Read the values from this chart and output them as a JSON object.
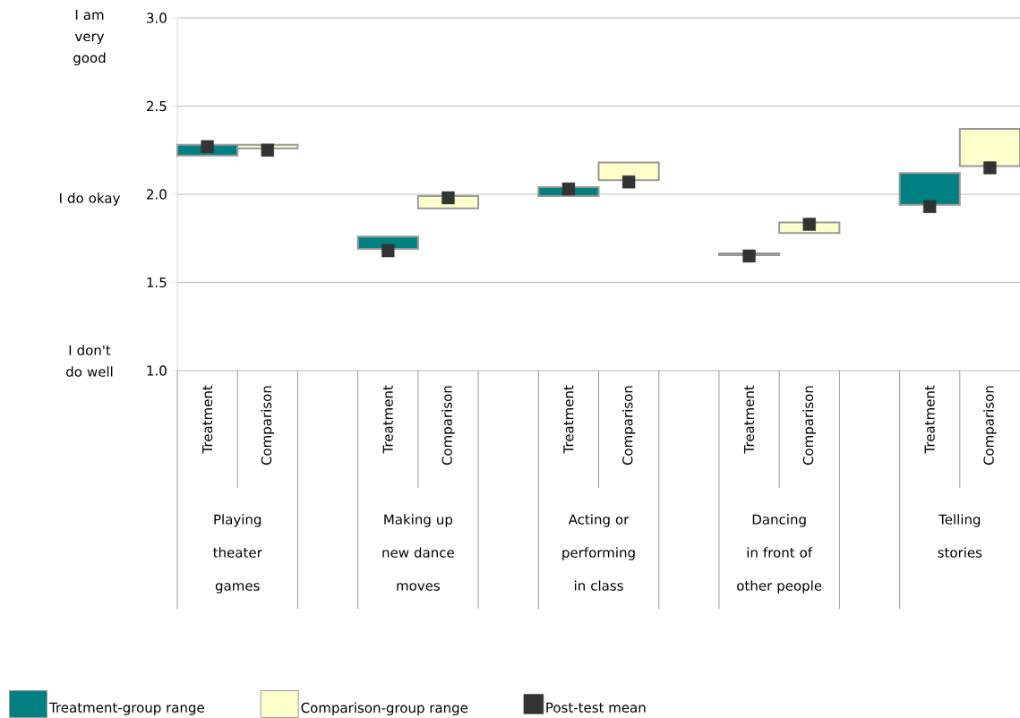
{
  "chart_data": {
    "type": "bar",
    "categories": [
      "Treatment",
      "Comparison",
      null,
      "Treatment",
      "Comparison",
      null,
      "Treatment",
      "Comparison",
      null,
      "Treatment",
      "Comparison",
      null,
      "Treatment",
      "Comparison"
    ],
    "series": [
      {
        "name": "Treatment-group range",
        "color": "#008080",
        "base": [
          2.22,
          null,
          null,
          1.69,
          null,
          null,
          1.99,
          null,
          null,
          1.655,
          null,
          null,
          1.94,
          null
        ],
        "values": [
          0.06,
          null,
          null,
          0.07,
          null,
          null,
          0.05,
          null,
          null,
          0.01,
          null,
          null,
          0.18,
          null
        ]
      },
      {
        "name": "Comparison-group range",
        "color": "#ffffcc",
        "base": [
          null,
          2.26,
          null,
          null,
          1.92,
          null,
          null,
          2.08,
          null,
          null,
          1.78,
          null,
          null,
          2.16
        ],
        "values": [
          null,
          0.02,
          null,
          null,
          0.07,
          null,
          null,
          0.1,
          null,
          null,
          0.06,
          null,
          null,
          0.21
        ]
      },
      {
        "name": "Post-test mean",
        "type": "scatter",
        "marker": "square",
        "color": "#333333",
        "values": [
          2.27,
          2.25,
          null,
          1.68,
          1.98,
          null,
          2.03,
          2.07,
          null,
          1.65,
          1.83,
          null,
          1.93,
          2.15
        ]
      }
    ],
    "ylim": [
      1.0,
      3.0
    ],
    "yticks": [
      {
        "value": 1.0,
        "label": "1.0"
      },
      {
        "value": 1.5,
        "label": "1.5"
      },
      {
        "value": 2.0,
        "label": "2.0"
      },
      {
        "value": 2.5,
        "label": "2.5"
      },
      {
        "value": 3.0,
        "label": "3.0"
      }
    ],
    "grid": "y",
    "legend": "bottom",
    "annotations": [
      "Playing theater games",
      "Making up new dance moves",
      "Acting or performing in class",
      "Dancing in front of other people",
      "Telling stories",
      "I am very good",
      "I do okay",
      "I don't do well"
    ]
  }
}
